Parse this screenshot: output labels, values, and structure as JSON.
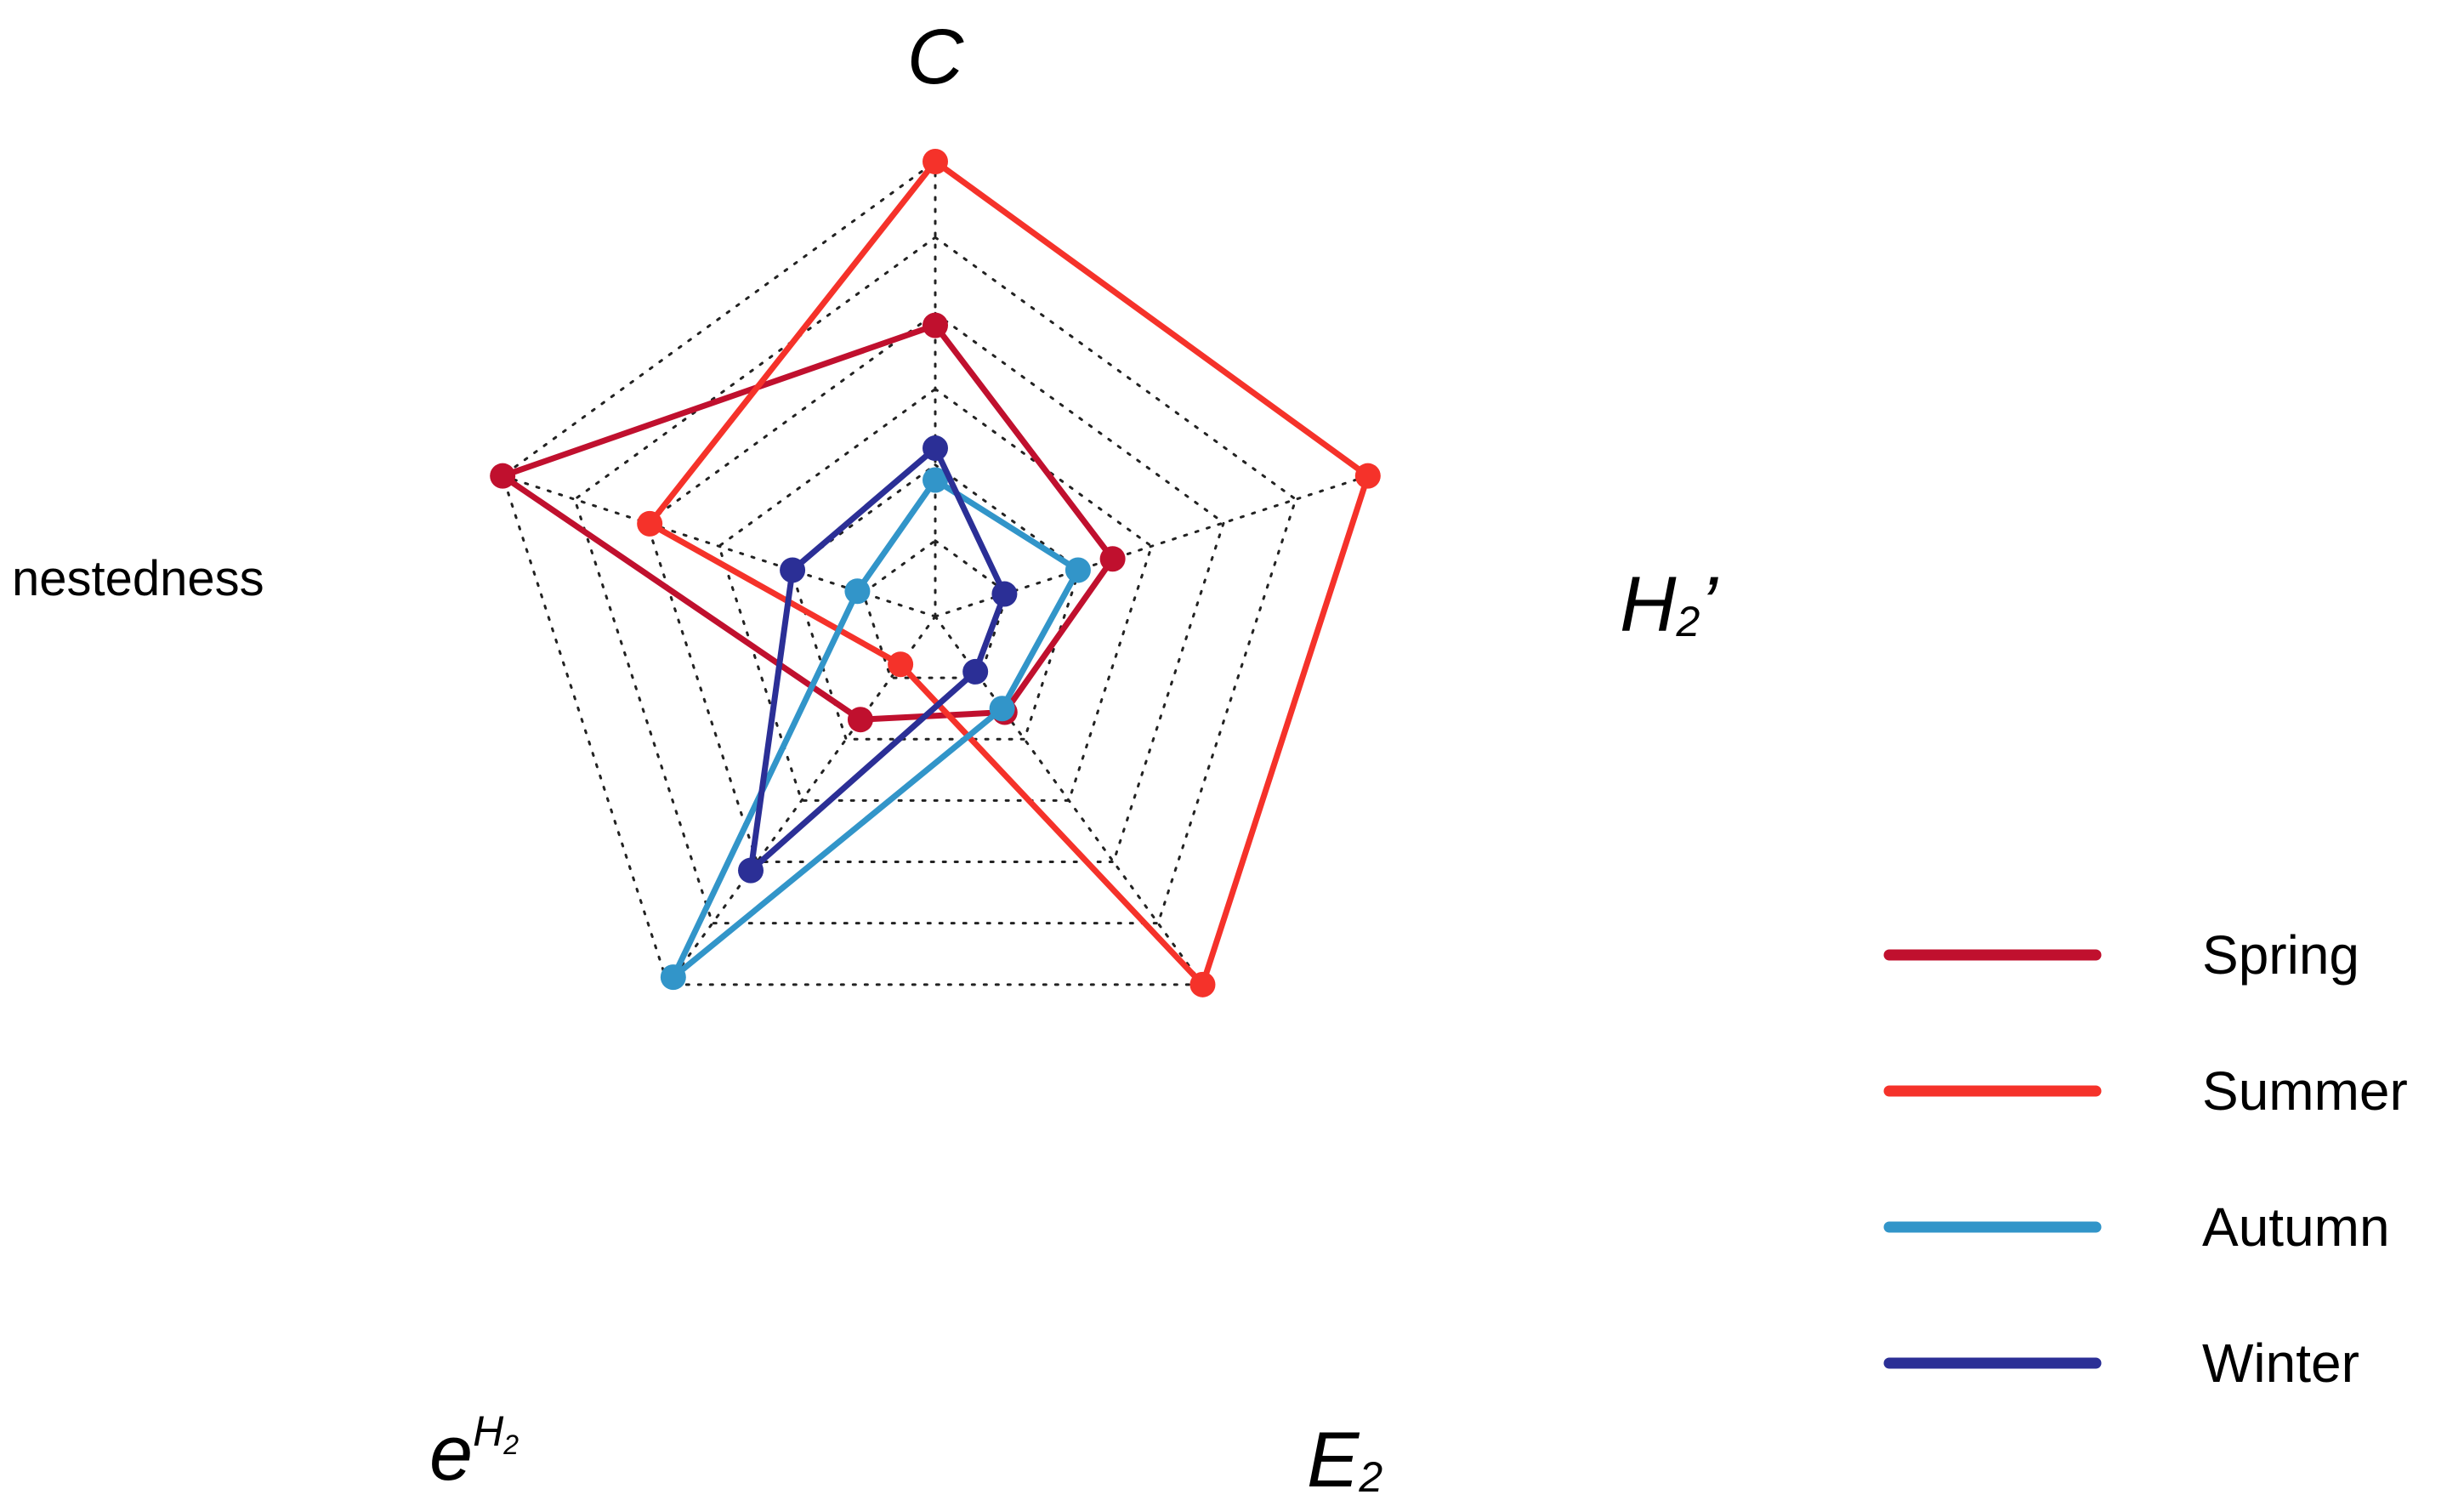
{
  "chart_data": {
    "type": "radar",
    "axes": [
      {
        "key": "C",
        "label": "C"
      },
      {
        "key": "H2",
        "label": "H",
        "sub": "2",
        "suffix": "’"
      },
      {
        "key": "E2",
        "label": "E",
        "sub": "2"
      },
      {
        "key": "eH2",
        "label": "e",
        "sup": "H",
        "supsub": "2"
      },
      {
        "key": "nestedness",
        "label": "nestedness"
      }
    ],
    "range": [
      0,
      1
    ],
    "grid_levels": 6,
    "grid": "dotted",
    "legend_position": "right",
    "series": [
      {
        "name": "Spring",
        "color": "#C0102E",
        "values": [
          0.64,
          0.41,
          0.26,
          0.28,
          1.0
        ]
      },
      {
        "name": "Summer",
        "color": "#F5322A",
        "values": [
          1.0,
          1.0,
          1.0,
          0.13,
          0.66
        ]
      },
      {
        "name": "Autumn",
        "color": "#3295C9",
        "values": [
          0.3,
          0.33,
          0.25,
          0.98,
          0.18
        ]
      },
      {
        "name": "Winter",
        "color": "#2B2F96",
        "values": [
          0.37,
          0.16,
          0.15,
          0.69,
          0.33
        ]
      }
    ]
  }
}
